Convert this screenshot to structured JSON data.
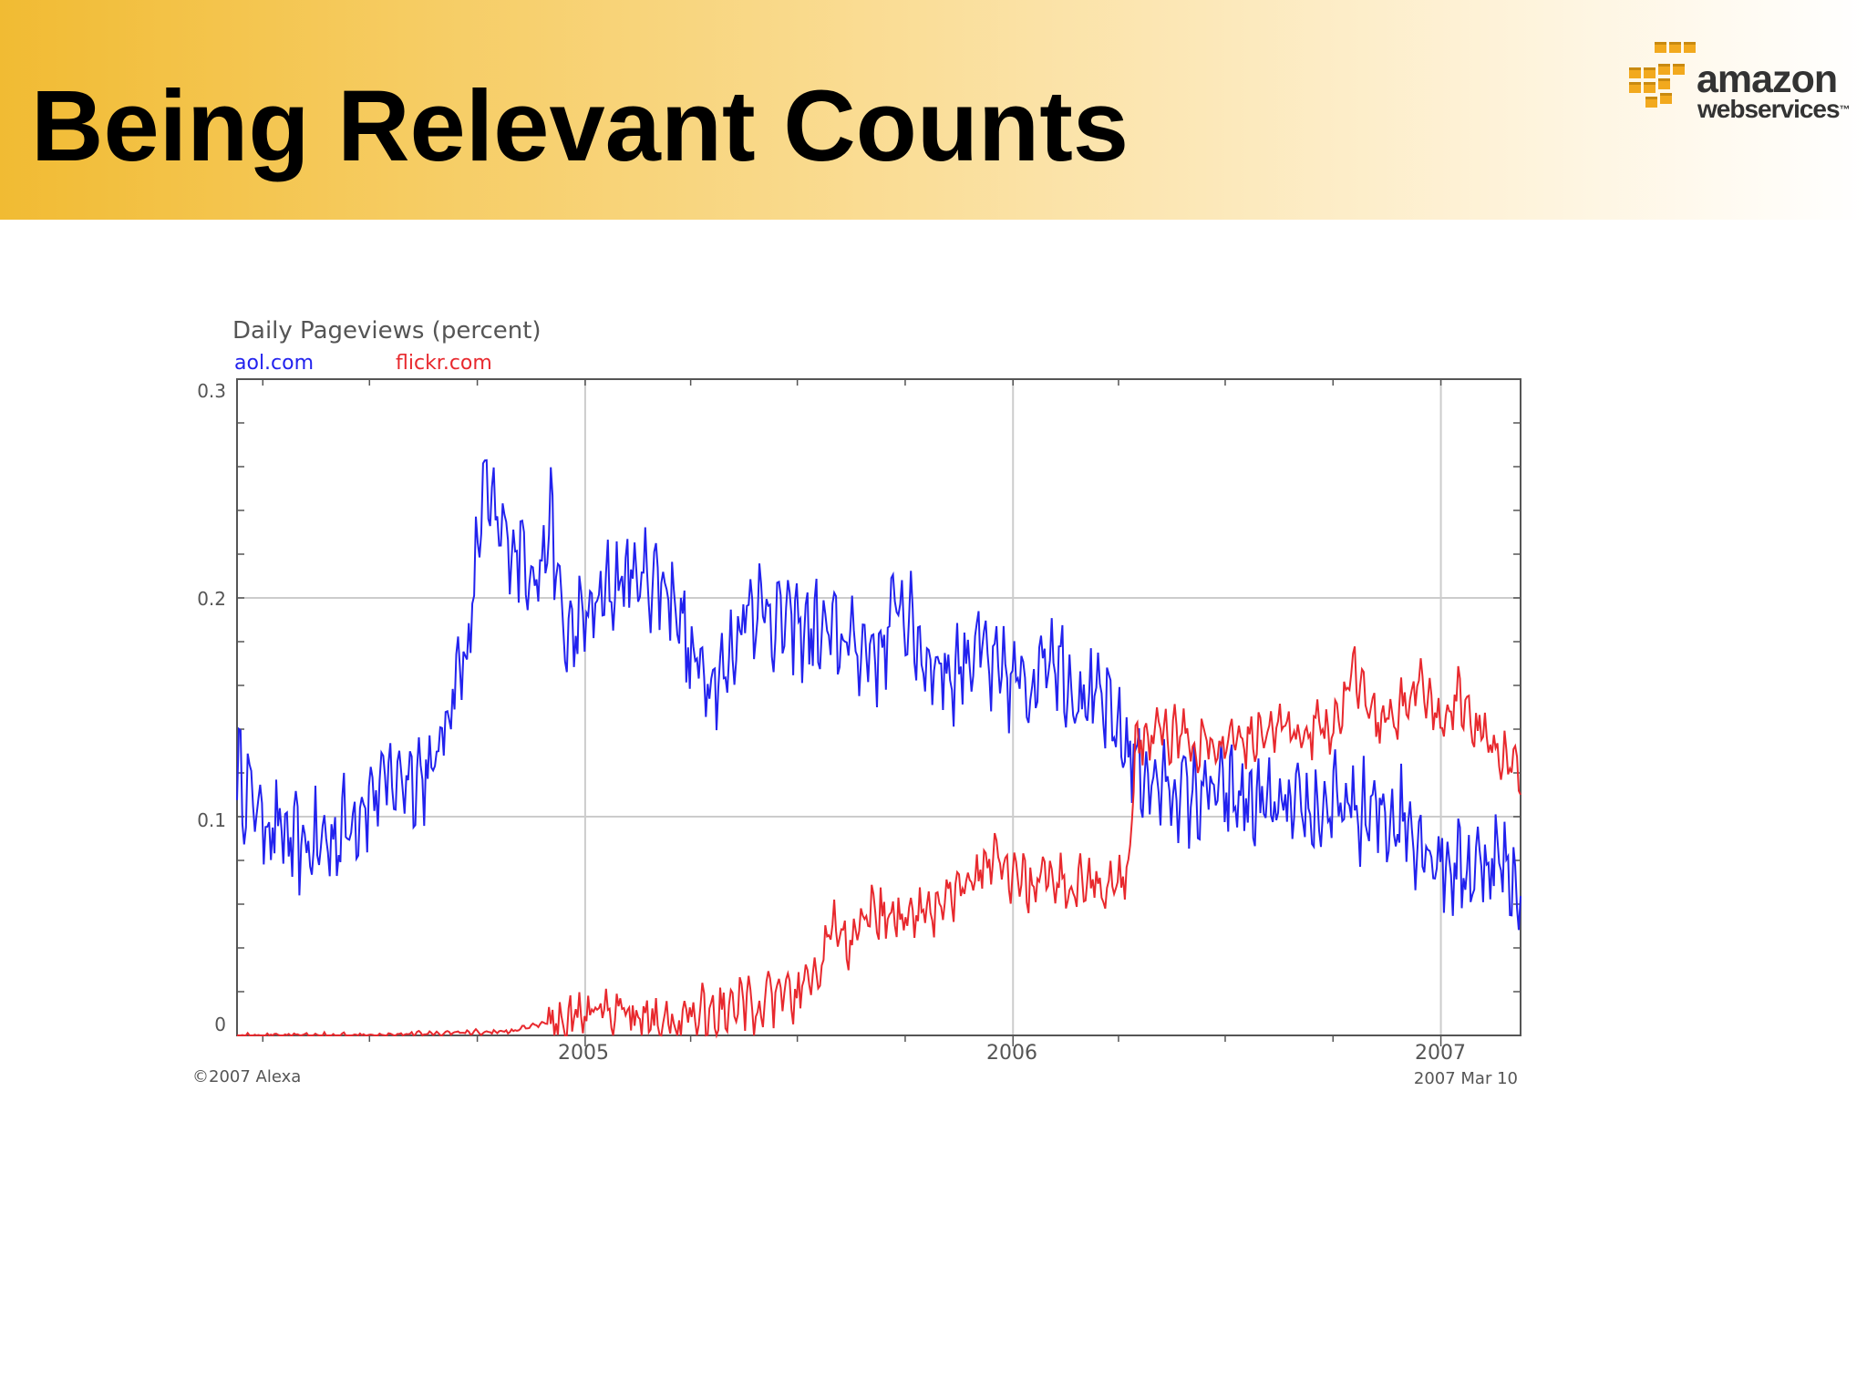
{
  "slide": {
    "title": "Being Relevant Counts"
  },
  "logo": {
    "word1": "amazon",
    "word2": "webservices",
    "trademark": "™",
    "colors": {
      "boxes": "#f2a91e",
      "box_shadow": "#c98a10",
      "text": "#333333"
    }
  },
  "chart_data": {
    "type": "line",
    "title": "Daily Pageviews (percent)",
    "ylim": [
      0,
      0.3
    ],
    "yticks": [
      0,
      0.1,
      0.2,
      0.3
    ],
    "ytick_labels": [
      "0",
      "0.1",
      "0.2",
      "0.3"
    ],
    "xlim": [
      "2004-03-10",
      "2007-03-10"
    ],
    "xticks": [
      "2005-01-01",
      "2006-01-01",
      "2007-01-01"
    ],
    "xtick_labels": [
      "2005",
      "2006",
      "2007"
    ],
    "end_date_label": "2007 Mar 10",
    "copyright": "©2007 Alexa",
    "grid": true,
    "legend_position": "top-left",
    "series": [
      {
        "name": "aol.com",
        "color": "#2222ee",
        "points": [
          [
            "2004-03-10",
            0.12
          ],
          [
            "2004-04-01",
            0.1
          ],
          [
            "2004-05-01",
            0.085
          ],
          [
            "2004-06-01",
            0.09
          ],
          [
            "2004-07-01",
            0.11
          ],
          [
            "2004-08-01",
            0.12
          ],
          [
            "2004-08-25",
            0.12
          ],
          [
            "2004-09-10",
            0.16
          ],
          [
            "2004-09-25",
            0.18
          ],
          [
            "2004-10-05",
            0.25
          ],
          [
            "2004-10-20",
            0.23
          ],
          [
            "2004-11-10",
            0.22
          ],
          [
            "2004-11-25",
            0.21
          ],
          [
            "2004-12-01",
            0.24
          ],
          [
            "2004-12-15",
            0.18
          ],
          [
            "2005-01-01",
            0.19
          ],
          [
            "2005-02-01",
            0.21
          ],
          [
            "2005-03-01",
            0.21
          ],
          [
            "2005-03-20",
            0.2
          ],
          [
            "2005-04-01",
            0.17
          ],
          [
            "2005-05-01",
            0.165
          ],
          [
            "2005-05-20",
            0.2
          ],
          [
            "2005-06-15",
            0.19
          ],
          [
            "2005-07-15",
            0.185
          ],
          [
            "2005-08-15",
            0.18
          ],
          [
            "2005-09-10",
            0.175
          ],
          [
            "2005-09-25",
            0.2
          ],
          [
            "2005-10-15",
            0.175
          ],
          [
            "2005-11-10",
            0.165
          ],
          [
            "2005-12-01",
            0.18
          ],
          [
            "2005-12-15",
            0.165
          ],
          [
            "2006-01-15",
            0.16
          ],
          [
            "2006-02-01",
            0.18
          ],
          [
            "2006-02-20",
            0.16
          ],
          [
            "2006-03-20",
            0.15
          ],
          [
            "2006-04-10",
            0.13
          ],
          [
            "2006-05-01",
            0.115
          ],
          [
            "2006-06-01",
            0.11
          ],
          [
            "2006-07-01",
            0.11
          ],
          [
            "2006-08-01",
            0.105
          ],
          [
            "2006-09-01",
            0.1
          ],
          [
            "2006-10-01",
            0.105
          ],
          [
            "2006-11-01",
            0.1
          ],
          [
            "2006-12-01",
            0.1
          ],
          [
            "2006-12-15",
            0.09
          ],
          [
            "2007-01-01",
            0.08
          ],
          [
            "2007-01-20",
            0.075
          ],
          [
            "2007-02-15",
            0.082
          ],
          [
            "2007-03-10",
            0.068
          ]
        ]
      },
      {
        "name": "flickr.com",
        "color": "#e8292e",
        "points": [
          [
            "2004-03-10",
            0.0
          ],
          [
            "2004-06-01",
            0.0
          ],
          [
            "2004-09-01",
            0.001
          ],
          [
            "2004-11-01",
            0.002
          ],
          [
            "2004-12-01",
            0.006
          ],
          [
            "2005-01-01",
            0.01
          ],
          [
            "2005-02-01",
            0.012
          ],
          [
            "2005-03-01",
            0.006
          ],
          [
            "2005-04-01",
            0.008
          ],
          [
            "2005-05-01",
            0.012
          ],
          [
            "2005-06-01",
            0.015
          ],
          [
            "2005-07-01",
            0.018
          ],
          [
            "2005-07-20",
            0.03
          ],
          [
            "2005-08-01",
            0.05
          ],
          [
            "2005-08-15",
            0.04
          ],
          [
            "2005-09-01",
            0.055
          ],
          [
            "2005-10-01",
            0.055
          ],
          [
            "2005-11-01",
            0.06
          ],
          [
            "2005-12-01",
            0.07
          ],
          [
            "2005-12-15",
            0.085
          ],
          [
            "2006-01-01",
            0.07
          ],
          [
            "2006-02-01",
            0.07
          ],
          [
            "2006-03-01",
            0.07
          ],
          [
            "2006-04-01",
            0.07
          ],
          [
            "2006-04-10",
            0.072
          ],
          [
            "2006-04-15",
            0.13
          ],
          [
            "2006-05-01",
            0.14
          ],
          [
            "2006-06-01",
            0.135
          ],
          [
            "2006-07-01",
            0.13
          ],
          [
            "2006-08-01",
            0.14
          ],
          [
            "2006-09-01",
            0.14
          ],
          [
            "2006-10-01",
            0.14
          ],
          [
            "2006-10-20",
            0.165
          ],
          [
            "2006-11-10",
            0.14
          ],
          [
            "2006-12-15",
            0.16
          ],
          [
            "2007-01-01",
            0.14
          ],
          [
            "2007-01-15",
            0.155
          ],
          [
            "2007-02-01",
            0.14
          ],
          [
            "2007-03-10",
            0.12
          ]
        ]
      }
    ]
  }
}
